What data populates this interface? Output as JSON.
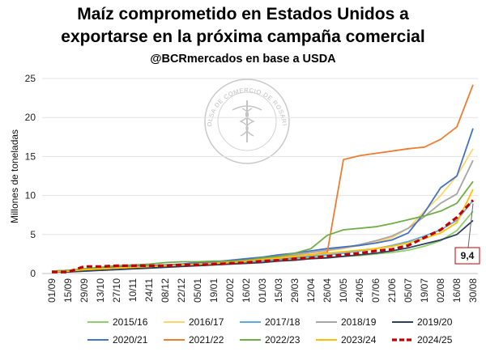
{
  "chart_data": {
    "type": "line",
    "title": "Maíz comprometido en Estados Unidos a",
    "title_line2": "exportarse en la próxima campaña comercial",
    "subtitle": "@BCRmercados en base a USDA",
    "ylabel": "Millones de toneladas",
    "watermark_text": "BOLSA DE COMERCIO DE ROSARIO",
    "ylim": [
      0,
      25
    ],
    "yticks": [
      "0",
      "5",
      "10",
      "15",
      "20",
      "25"
    ],
    "grid": true,
    "legend_position": "bottom",
    "x": [
      "01/09",
      "15/09",
      "29/09",
      "13/10",
      "27/10",
      "10/11",
      "24/11",
      "08/12",
      "22/12",
      "05/01",
      "19/01",
      "02/02",
      "16/02",
      "01/03",
      "15/03",
      "29/03",
      "12/04",
      "26/04",
      "10/05",
      "24/05",
      "07/06",
      "21/06",
      "05/07",
      "19/07",
      "02/08",
      "16/08",
      "30/08"
    ],
    "series": [
      {
        "name": "2015/16",
        "color": "#8fcf6b",
        "dash": false,
        "values": [
          0.3,
          0.3,
          0.4,
          0.5,
          0.6,
          0.7,
          0.8,
          0.9,
          1.0,
          1.0,
          1.1,
          1.2,
          1.4,
          1.6,
          1.7,
          1.9,
          2.0,
          2.1,
          2.2,
          2.3,
          2.5,
          2.7,
          3.0,
          3.5,
          4.2,
          5.5,
          8.0
        ]
      },
      {
        "name": "2016/17",
        "color": "#ffd56b",
        "dash": false,
        "values": [
          0.3,
          0.4,
          0.5,
          0.6,
          0.7,
          0.8,
          0.9,
          1.0,
          1.1,
          1.2,
          1.3,
          1.5,
          1.7,
          1.9,
          2.1,
          2.3,
          2.6,
          2.9,
          3.2,
          3.6,
          4.0,
          4.6,
          5.8,
          8.0,
          10.0,
          12.5,
          16.0
        ]
      },
      {
        "name": "2017/18",
        "color": "#5fa8e0",
        "dash": false,
        "values": [
          0.2,
          0.3,
          0.4,
          0.5,
          0.6,
          0.7,
          0.8,
          0.9,
          1.0,
          1.1,
          1.2,
          1.3,
          1.5,
          1.6,
          1.8,
          2.0,
          2.2,
          2.4,
          2.6,
          2.9,
          3.2,
          3.6,
          4.1,
          4.8,
          5.6,
          6.8,
          9.4
        ]
      },
      {
        "name": "2018/19",
        "color": "#a6a6a6",
        "dash": false,
        "values": [
          0.3,
          0.4,
          0.6,
          0.7,
          0.8,
          0.9,
          1.0,
          1.1,
          1.2,
          1.3,
          1.4,
          1.6,
          1.8,
          2.0,
          2.2,
          2.4,
          2.7,
          3.0,
          3.3,
          3.7,
          4.2,
          4.8,
          5.8,
          7.3,
          9.0,
          10.2,
          14.5
        ]
      },
      {
        "name": "2019/20",
        "color": "#2f3f5f",
        "dash": false,
        "values": [
          0.2,
          0.2,
          0.3,
          0.4,
          0.5,
          0.6,
          0.7,
          0.8,
          0.9,
          1.0,
          1.1,
          1.2,
          1.3,
          1.4,
          1.6,
          1.7,
          1.9,
          2.0,
          2.2,
          2.4,
          2.6,
          2.9,
          3.3,
          3.8,
          4.3,
          5.0,
          6.8
        ]
      },
      {
        "name": "2020/21",
        "color": "#4472c4",
        "dash": false,
        "values": [
          0.3,
          0.4,
          0.5,
          0.7,
          0.8,
          0.9,
          1.0,
          1.1,
          1.2,
          1.4,
          1.5,
          1.7,
          1.9,
          2.1,
          2.4,
          2.6,
          2.9,
          3.2,
          3.4,
          3.6,
          3.9,
          4.3,
          5.2,
          7.8,
          11.0,
          12.5,
          18.6
        ]
      },
      {
        "name": "2021/22",
        "color": "#ed7d31",
        "dash": false,
        "values": [
          0.3,
          0.4,
          0.5,
          0.6,
          0.7,
          0.8,
          0.9,
          1.0,
          1.1,
          1.2,
          1.3,
          1.4,
          1.6,
          1.8,
          2.0,
          2.2,
          2.4,
          2.7,
          14.6,
          15.1,
          15.4,
          15.7,
          16.0,
          16.2,
          17.2,
          18.8,
          24.2
        ]
      },
      {
        "name": "2022/23",
        "color": "#70ad47",
        "dash": false,
        "values": [
          0.3,
          0.4,
          0.6,
          0.8,
          1.0,
          1.1,
          1.2,
          1.4,
          1.5,
          1.5,
          1.6,
          1.6,
          1.7,
          2.0,
          2.2,
          2.6,
          3.2,
          4.9,
          5.6,
          5.8,
          6.0,
          6.4,
          6.9,
          7.4,
          8.0,
          9.0,
          11.8
        ]
      },
      {
        "name": "2023/24",
        "color": "#ffc000",
        "dash": false,
        "values": [
          0.2,
          0.3,
          0.5,
          0.6,
          0.7,
          0.8,
          0.9,
          1.0,
          1.1,
          1.2,
          1.3,
          1.4,
          1.6,
          1.8,
          2.0,
          2.2,
          2.4,
          2.6,
          2.8,
          3.0,
          3.2,
          3.5,
          3.9,
          4.5,
          5.2,
          6.5,
          10.8
        ]
      },
      {
        "name": "2024/25",
        "color": "#c00000",
        "dash": true,
        "values": [
          0.2,
          0.2,
          0.9,
          0.9,
          1.0,
          1.0,
          1.0,
          1.0,
          1.1,
          1.1,
          1.2,
          1.3,
          1.4,
          1.6,
          1.7,
          1.9,
          2.0,
          2.2,
          2.4,
          2.6,
          2.9,
          3.1,
          3.6,
          4.6,
          5.6,
          7.2,
          9.4
        ]
      }
    ],
    "annotation": {
      "text": "9,4",
      "series": "2024/25",
      "x": "30/08",
      "value": 9.4
    }
  }
}
